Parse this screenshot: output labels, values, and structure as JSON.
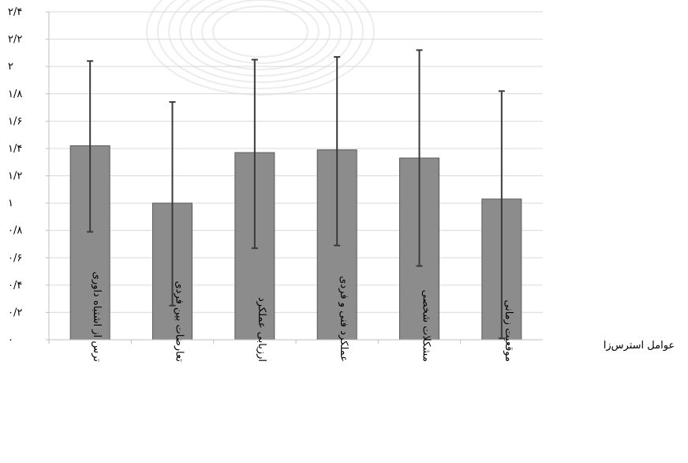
{
  "chart_data": {
    "type": "bar",
    "x_axis_title": "عوامل استرس‌زا",
    "categories": [
      "ترس از اشتباه داوری",
      "تعارضات بین فردی",
      "ارزیابی عملکرد",
      "عملکرد فنی و فردی",
      "مشکلات شخصی",
      "موقعیت زمانی"
    ],
    "values": [
      1.42,
      1.0,
      1.37,
      1.39,
      1.33,
      1.03
    ],
    "error_low": [
      0.79,
      0.25,
      0.67,
      0.69,
      0.54,
      0.01
    ],
    "error_high": [
      2.04,
      1.74,
      2.05,
      2.07,
      2.12,
      1.82
    ],
    "ylim": [
      0,
      2.4
    ],
    "yticks": [
      {
        "v": 0,
        "label": "۰"
      },
      {
        "v": 0.2,
        "label": "۰/۲"
      },
      {
        "v": 0.4,
        "label": "۰/۴"
      },
      {
        "v": 0.6,
        "label": "۰/۶"
      },
      {
        "v": 0.8,
        "label": "۰/۸"
      },
      {
        "v": 1.0,
        "label": "۱"
      },
      {
        "v": 1.2,
        "label": "۱/۲"
      },
      {
        "v": 1.4,
        "label": "۱/۴"
      },
      {
        "v": 1.6,
        "label": "۱/۶"
      },
      {
        "v": 1.8,
        "label": "۱/۸"
      },
      {
        "v": 2.0,
        "label": "۲"
      },
      {
        "v": 2.2,
        "label": "۲/۲"
      },
      {
        "v": 2.4,
        "label": "۲/۴"
      }
    ],
    "grid": true,
    "colors": {
      "bar": "#8c8c8c",
      "bar_edge": "#5a5a5a",
      "error_bar": "#3a3a3a",
      "grid": "#d9d9d9",
      "axis": "#bfbfbf",
      "text": "#000000",
      "watermark": "#c9c9c9"
    }
  }
}
